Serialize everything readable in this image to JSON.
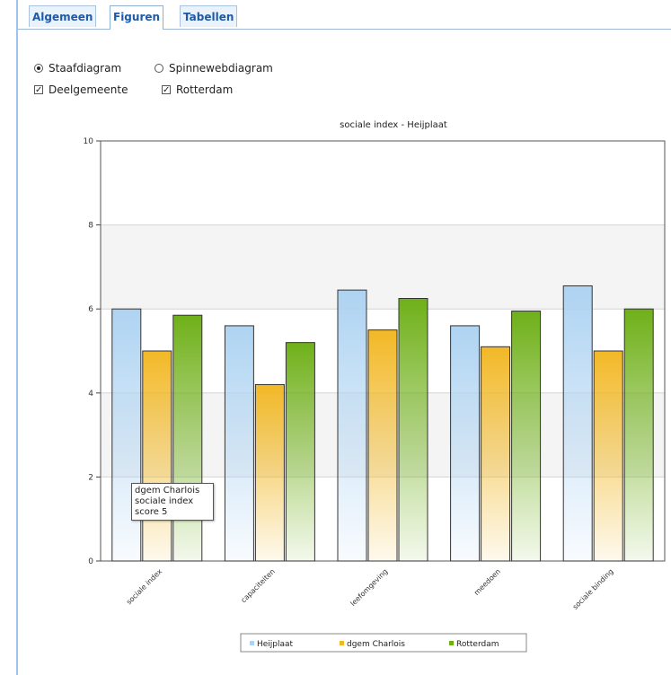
{
  "tabs": [
    {
      "label": "Algemeen"
    },
    {
      "label": "Figuren"
    },
    {
      "label": "Tabellen"
    }
  ],
  "options": {
    "chart_kind": [
      {
        "label": "Staafdiagram",
        "selected": true
      },
      {
        "label": "Spinnewebdiagram",
        "selected": false
      }
    ],
    "series_toggles": [
      {
        "label": "Deelgemeente",
        "checked": true
      },
      {
        "label": "Rotterdam",
        "checked": true
      }
    ]
  },
  "tooltip": {
    "lines": [
      "dgem Charlois",
      "sociale index",
      "score 5"
    ]
  },
  "chart_data": {
    "type": "bar",
    "title": "sociale index - Heijplaat",
    "categories": [
      "sociale index",
      "capaciteiten",
      "leefomgeving",
      "meedoen",
      "sociale binding"
    ],
    "series": [
      {
        "name": "Heijplaat",
        "values": [
          6.0,
          5.6,
          6.45,
          5.6,
          6.55
        ]
      },
      {
        "name": "dgem Charlois",
        "values": [
          5.0,
          4.2,
          5.5,
          5.1,
          5.0
        ]
      },
      {
        "name": "Rotterdam",
        "values": [
          5.85,
          5.2,
          6.25,
          5.95,
          6.0
        ]
      }
    ],
    "ylim": [
      0,
      10
    ],
    "yticks": [
      0,
      2,
      4,
      6,
      8,
      10
    ],
    "grid": true,
    "legend": "bottom",
    "colors": {
      "Heijplaat": "#aed3f2",
      "dgem Charlois": "#f2b826",
      "Rotterdam": "#6fb019"
    }
  }
}
